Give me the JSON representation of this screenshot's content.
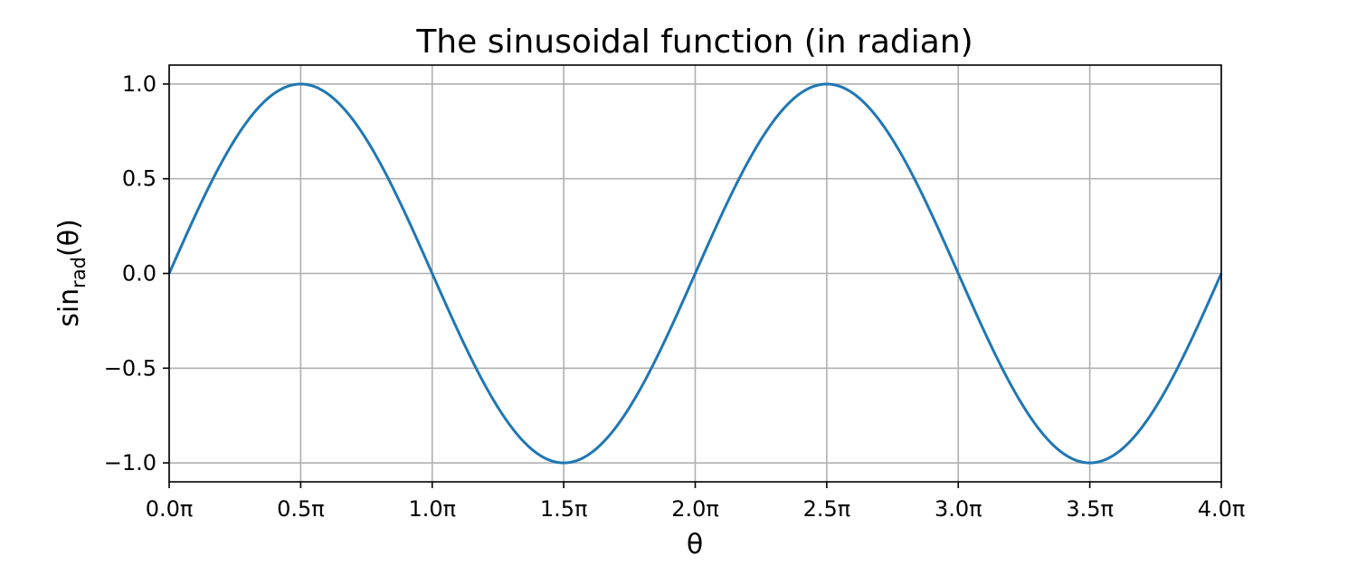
{
  "chart_data": {
    "type": "line",
    "title": "The sinusoidal function (in radian)",
    "xlabel": "θ",
    "ylabel": {
      "base": "sin",
      "subscript": "rad",
      "suffix": "(θ)"
    },
    "xlim": [
      0,
      4
    ],
    "ylim": [
      -1.1,
      1.1
    ],
    "x_unit": "π",
    "x_ticks": [
      0,
      0.5,
      1,
      1.5,
      2,
      2.5,
      3,
      3.5,
      4
    ],
    "x_tick_labels": [
      "0.0π",
      "0.5π",
      "1.0π",
      "1.5π",
      "2.0π",
      "2.5π",
      "3.0π",
      "3.5π",
      "4.0π"
    ],
    "y_ticks": [
      1,
      0.5,
      0,
      -0.5,
      -1
    ],
    "y_tick_labels": [
      "1.0",
      "0.5",
      "0.0",
      "−0.5",
      "−1.0"
    ],
    "grid": true,
    "legend": false,
    "series": [
      {
        "color": "#1f77b4",
        "x": [
          0,
          0.25,
          0.5,
          0.75,
          1,
          1.25,
          1.5,
          1.75,
          2,
          2.25,
          2.5,
          2.75,
          3,
          3.25,
          3.5,
          3.75,
          4
        ],
        "y": [
          0,
          0.707,
          1,
          0.707,
          0,
          -0.707,
          -1,
          -0.707,
          0,
          0.707,
          1,
          0.707,
          0,
          -0.707,
          -1,
          -0.707,
          0
        ]
      }
    ]
  }
}
